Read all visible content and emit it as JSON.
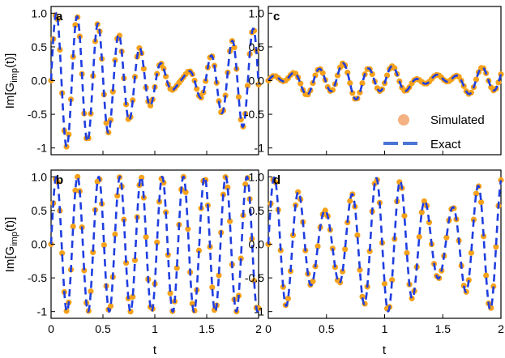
{
  "chart_data": [
    {
      "type": "line",
      "panel": "a",
      "ylabel": "Im[G_imp(t)]",
      "xlabel": "",
      "xlim": [
        0,
        2
      ],
      "ylim": [
        -1.1,
        1.1
      ],
      "xticks": [
        0,
        0.5,
        1,
        1.5,
        2
      ],
      "yticks": [
        -1,
        -0.5,
        0,
        0.5,
        1
      ],
      "xticklabels_visible": false,
      "yticklabels_visible": true,
      "series": [
        {
          "name": "Exact",
          "components": [
            {
              "amp": 0.45,
              "freq": 5.2,
              "phase": 0
            },
            {
              "amp": 0.55,
              "freq": 4.8,
              "phase": 0
            }
          ]
        }
      ],
      "sim_points": 95
    },
    {
      "type": "line",
      "panel": "c",
      "ylabel": "",
      "xlabel": "",
      "xlim": [
        0,
        2
      ],
      "ylim": [
        -1.1,
        1.1
      ],
      "xticks": [
        0,
        0.5,
        1,
        1.5,
        2
      ],
      "yticks": [
        -1,
        -0.5,
        0,
        0.5,
        1
      ],
      "xticklabels_visible": false,
      "yticklabels_visible": true,
      "series": [
        {
          "name": "Exact",
          "components": [
            {
              "amp": 0.13,
              "freq": 5.0,
              "phase": 0
            },
            {
              "amp": -0.1,
              "freq": 4.3,
              "phase": 0
            },
            {
              "amp": 0.06,
              "freq": 2.2,
              "phase": 0
            }
          ]
        }
      ],
      "sim_points": 95,
      "legend": {
        "position": "lower-right",
        "entries": [
          "Simulated",
          "Exact"
        ]
      }
    },
    {
      "type": "line",
      "panel": "b",
      "ylabel": "Im[G_imp(t)]",
      "xlabel": "t",
      "xlim": [
        0,
        2
      ],
      "ylim": [
        -1.1,
        1.1
      ],
      "xticks": [
        0,
        0.5,
        1,
        1.5,
        2
      ],
      "yticks": [
        -1,
        -0.5,
        0,
        0.5,
        1
      ],
      "xticklabels_visible": true,
      "yticklabels_visible": true,
      "series": [
        {
          "name": "Exact",
          "components": [
            {
              "amp": 1.0,
              "freq": 4.9,
              "phase": 0
            }
          ]
        }
      ],
      "sim_points": 95
    },
    {
      "type": "line",
      "panel": "d",
      "ylabel": "",
      "xlabel": "t",
      "xlim": [
        0,
        2
      ],
      "ylim": [
        -1.1,
        1.1
      ],
      "xticks": [
        0,
        0.5,
        1,
        1.5,
        2
      ],
      "yticks": [
        -1,
        -0.5,
        0,
        0.5,
        1
      ],
      "xticklabels_visible": true,
      "yticklabels_visible": true,
      "series": [
        {
          "name": "Exact",
          "components": [
            {
              "amp": 0.75,
              "freq": 4.6,
              "phase": 0
            },
            {
              "amp": 0.25,
              "freq": 5.6,
              "phase": 0
            }
          ]
        }
      ],
      "sim_points": 95
    }
  ],
  "labels": {
    "panel_a": "a",
    "panel_b": "b",
    "panel_c": "c",
    "panel_d": "d",
    "ylabel_main": "Im[G",
    "ylabel_sub": "imp",
    "ylabel_tail": "(t)]",
    "xlabel": "t",
    "legend_simulated": "Simulated",
    "legend_exact": "Exact"
  },
  "colors": {
    "exact": "#1f3ee0",
    "simulated": "#f5a21b",
    "legend_marker": "#f4b183"
  }
}
